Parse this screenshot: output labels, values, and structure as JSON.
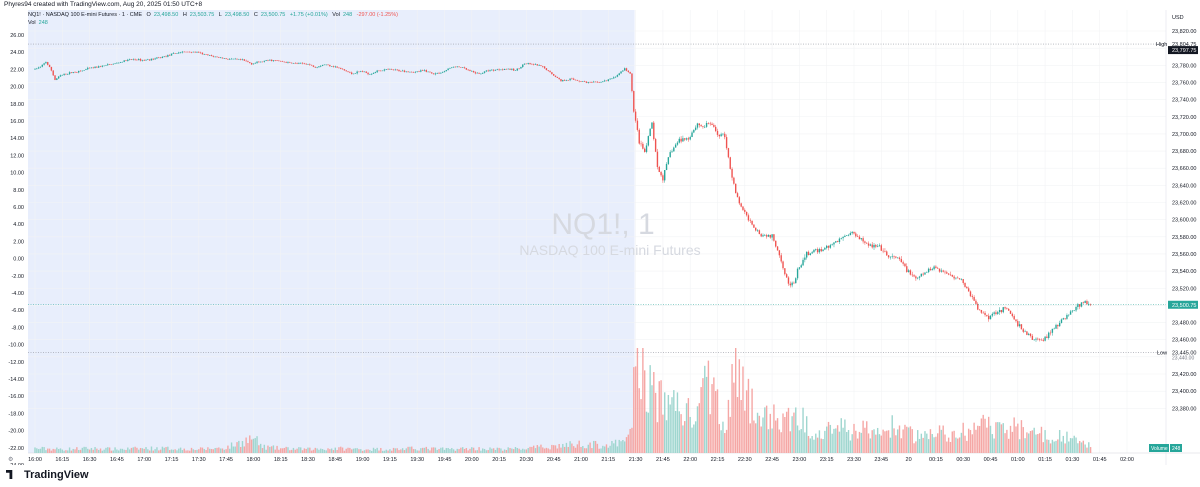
{
  "header": {
    "text": "Phyres94 created with TradingView.com, Aug 20, 2025 01:50 UTC+8"
  },
  "legend": {
    "symbol": "NQ1! · NASDAQ 100 E-mini Futures · 1 · CME",
    "o_label": "O",
    "o": "23,498.50",
    "h_label": "H",
    "h": "23,503.75",
    "l_label": "L",
    "l": "23,498.50",
    "c_label": "C",
    "c": "23,500.75",
    "chg": "+1.75 (+0.01%)",
    "vol_label": "Vol",
    "vol": "248",
    "change2": "-297.00 (-1.25%)",
    "vol_row_label": "Vol",
    "vol_row_value": "248"
  },
  "watermark": {
    "symbol": "NQ1!, 1",
    "name": "NASDAQ 100 E-mini Futures"
  },
  "footer": {
    "brand": "TradingView"
  },
  "colors": {
    "up": "#26a69a",
    "down": "#ef5350",
    "session_bg": "#e8eefc",
    "grid": "#f2f3f5",
    "axis_text": "#131722"
  },
  "chart_data": {
    "type": "candlestick",
    "currency": "USD",
    "price_axis": {
      "ticks": [
        "23,820.00",
        "23,800.00",
        "23,780.00",
        "23,760.00",
        "23,740.00",
        "23,720.00",
        "23,700.00",
        "23,680.00",
        "23,660.00",
        "23,640.00",
        "23,620.00",
        "23,600.00",
        "23,580.00",
        "23,560.00",
        "23,540.00",
        "23,520.00",
        "23,500.00",
        "23,480.00",
        "23,460.00",
        "23,440.00",
        "23,420.00",
        "23,400.00",
        "23,380.00"
      ],
      "range": [
        23370,
        23830
      ]
    },
    "left_axis": {
      "ticks": [
        "26.00",
        "24.00",
        "22.00",
        "20.00",
        "18.00",
        "16.00",
        "14.00",
        "12.00",
        "10.00",
        "8.00",
        "6.00",
        "4.00",
        "2.00",
        "0.00",
        "-2.00",
        "-4.00",
        "-6.00",
        "-8.00",
        "-10.00",
        "-12.00",
        "-14.00",
        "-16.00",
        "-18.00",
        "-20.00",
        "-22.00",
        "-24.00"
      ]
    },
    "time_axis": {
      "ticks": [
        "16:00",
        "16:15",
        "16:30",
        "16:45",
        "17:00",
        "17:15",
        "17:30",
        "17:45",
        "18:00",
        "18:15",
        "18:30",
        "18:45",
        "19:00",
        "19:15",
        "19:30",
        "19:45",
        "20:00",
        "20:15",
        "20:30",
        "20:45",
        "21:00",
        "21:15",
        "21:30",
        "21:45",
        "22:00",
        "22:15",
        "22:30",
        "22:45",
        "23:00",
        "23:15",
        "23:30",
        "23:45",
        "20",
        "00:15",
        "00:30",
        "00:45",
        "01:00",
        "01:15",
        "01:30",
        "01:45",
        "02:00"
      ]
    },
    "session_end_label": "21:30",
    "high": {
      "label": "High",
      "value": "23,804.75",
      "price": 23804.75
    },
    "high_sub": {
      "value": "23,797.75",
      "price": 23797.75
    },
    "low": {
      "label": "Low",
      "value": "23,445.00",
      "price": 23445.0
    },
    "low_sub": {
      "value": "23,440.00"
    },
    "last": {
      "value": "23,500.75",
      "price": 23500.75
    },
    "volume_label": "Volume",
    "volume_value": "248",
    "price_path": [
      [
        "16:00",
        23775
      ],
      [
        "16:04",
        23778
      ],
      [
        "16:07",
        23784
      ],
      [
        "16:10",
        23774
      ],
      [
        "16:12",
        23763
      ],
      [
        "16:15",
        23768
      ],
      [
        "16:18",
        23770
      ],
      [
        "16:22",
        23772
      ],
      [
        "16:26",
        23773
      ],
      [
        "16:30",
        23776
      ],
      [
        "16:35",
        23778
      ],
      [
        "16:40",
        23780
      ],
      [
        "16:45",
        23782
      ],
      [
        "16:50",
        23785
      ],
      [
        "16:55",
        23787
      ],
      [
        "17:00",
        23786
      ],
      [
        "17:05",
        23787
      ],
      [
        "17:10",
        23789
      ],
      [
        "17:15",
        23792
      ],
      [
        "17:20",
        23795
      ],
      [
        "17:25",
        23796
      ],
      [
        "17:30",
        23795
      ],
      [
        "17:35",
        23792
      ],
      [
        "17:40",
        23790
      ],
      [
        "17:45",
        23788
      ],
      [
        "17:50",
        23787
      ],
      [
        "17:55",
        23786
      ],
      [
        "18:00",
        23782
      ],
      [
        "18:05",
        23784
      ],
      [
        "18:10",
        23786
      ],
      [
        "18:15",
        23785
      ],
      [
        "18:20",
        23783
      ],
      [
        "18:25",
        23782
      ],
      [
        "18:30",
        23782
      ],
      [
        "18:35",
        23778
      ],
      [
        "18:40",
        23781
      ],
      [
        "18:45",
        23779
      ],
      [
        "18:50",
        23775
      ],
      [
        "18:55",
        23770
      ],
      [
        "19:00",
        23773
      ],
      [
        "19:05",
        23770
      ],
      [
        "19:10",
        23774
      ],
      [
        "19:15",
        23775
      ],
      [
        "19:20",
        23774
      ],
      [
        "19:25",
        23773
      ],
      [
        "19:30",
        23772
      ],
      [
        "19:35",
        23774
      ],
      [
        "19:40",
        23770
      ],
      [
        "19:45",
        23772
      ],
      [
        "19:50",
        23778
      ],
      [
        "19:55",
        23778
      ],
      [
        "20:00",
        23773
      ],
      [
        "20:05",
        23770
      ],
      [
        "20:10",
        23774
      ],
      [
        "20:15",
        23775
      ],
      [
        "20:20",
        23776
      ],
      [
        "20:25",
        23774
      ],
      [
        "20:30",
        23782
      ],
      [
        "20:35",
        23781
      ],
      [
        "20:40",
        23778
      ],
      [
        "20:45",
        23770
      ],
      [
        "20:50",
        23762
      ],
      [
        "20:55",
        23764
      ],
      [
        "21:00",
        23762
      ],
      [
        "21:05",
        23760
      ],
      [
        "21:10",
        23760
      ],
      [
        "21:15",
        23762
      ],
      [
        "21:20",
        23767
      ],
      [
        "21:25",
        23776
      ],
      [
        "21:28",
        23770
      ],
      [
        "21:30",
        23728
      ],
      [
        "21:33",
        23690
      ],
      [
        "21:36",
        23678
      ],
      [
        "21:40",
        23713
      ],
      [
        "21:43",
        23660
      ],
      [
        "21:46",
        23648
      ],
      [
        "21:50",
        23678
      ],
      [
        "21:55",
        23693
      ],
      [
        "22:00",
        23695
      ],
      [
        "22:05",
        23712
      ],
      [
        "22:08",
        23708
      ],
      [
        "22:12",
        23713
      ],
      [
        "22:16",
        23700
      ],
      [
        "22:20",
        23698
      ],
      [
        "22:23",
        23660
      ],
      [
        "22:26",
        23630
      ],
      [
        "22:30",
        23610
      ],
      [
        "22:35",
        23595
      ],
      [
        "22:40",
        23582
      ],
      [
        "22:43",
        23582
      ],
      [
        "22:46",
        23580
      ],
      [
        "22:50",
        23560
      ],
      [
        "22:55",
        23525
      ],
      [
        "22:58",
        23525
      ],
      [
        "23:00",
        23540
      ],
      [
        "23:05",
        23560
      ],
      [
        "23:10",
        23563
      ],
      [
        "23:15",
        23567
      ],
      [
        "23:20",
        23572
      ],
      [
        "23:25",
        23580
      ],
      [
        "23:30",
        23585
      ],
      [
        "23:35",
        23578
      ],
      [
        "23:40",
        23570
      ],
      [
        "23:45",
        23567
      ],
      [
        "23:50",
        23556
      ],
      [
        "23:55",
        23555
      ],
      [
        "00:00",
        23542
      ],
      [
        "00:05",
        23530
      ],
      [
        "00:10",
        23538
      ],
      [
        "00:15",
        23545
      ],
      [
        "00:20",
        23539
      ],
      [
        "00:25",
        23535
      ],
      [
        "00:30",
        23530
      ],
      [
        "00:35",
        23512
      ],
      [
        "00:40",
        23493
      ],
      [
        "00:45",
        23487
      ],
      [
        "00:50",
        23494
      ],
      [
        "00:55",
        23496
      ],
      [
        "01:00",
        23480
      ],
      [
        "01:05",
        23468
      ],
      [
        "01:10",
        23460
      ],
      [
        "01:15",
        23460
      ],
      [
        "01:20",
        23472
      ],
      [
        "01:25",
        23482
      ],
      [
        "01:30",
        23492
      ],
      [
        "01:35",
        23500
      ],
      [
        "01:38",
        23506
      ],
      [
        "01:40",
        23500
      ]
    ],
    "volume_path": [
      [
        "16:00",
        6
      ],
      [
        "16:15",
        5
      ],
      [
        "16:30",
        6
      ],
      [
        "16:45",
        5
      ],
      [
        "17:00",
        6
      ],
      [
        "17:15",
        6
      ],
      [
        "17:30",
        5
      ],
      [
        "17:45",
        7
      ],
      [
        "18:00",
        20
      ],
      [
        "18:05",
        8
      ],
      [
        "18:15",
        6
      ],
      [
        "18:30",
        5
      ],
      [
        "18:45",
        6
      ],
      [
        "19:00",
        5
      ],
      [
        "19:15",
        5
      ],
      [
        "19:30",
        6
      ],
      [
        "19:45",
        5
      ],
      [
        "20:00",
        6
      ],
      [
        "20:15",
        5
      ],
      [
        "20:30",
        6
      ],
      [
        "20:45",
        9
      ],
      [
        "21:00",
        12
      ],
      [
        "21:15",
        10
      ],
      [
        "21:25",
        15
      ],
      [
        "21:28",
        50
      ],
      [
        "21:30",
        130
      ],
      [
        "21:35",
        95
      ],
      [
        "21:40",
        80
      ],
      [
        "21:45",
        62
      ],
      [
        "21:50",
        70
      ],
      [
        "21:55",
        60
      ],
      [
        "22:00",
        48
      ],
      [
        "22:05",
        52
      ],
      [
        "22:10",
        100
      ],
      [
        "22:15",
        60
      ],
      [
        "22:20",
        45
      ],
      [
        "22:25",
        112
      ],
      [
        "22:30",
        70
      ],
      [
        "22:35",
        62
      ],
      [
        "22:40",
        42
      ],
      [
        "22:45",
        52
      ],
      [
        "22:50",
        38
      ],
      [
        "22:55",
        44
      ],
      [
        "23:00",
        48
      ],
      [
        "23:05",
        35
      ],
      [
        "23:10",
        30
      ],
      [
        "23:15",
        38
      ],
      [
        "23:20",
        35
      ],
      [
        "23:25",
        30
      ],
      [
        "23:30",
        28
      ],
      [
        "23:35",
        34
      ],
      [
        "23:40",
        26
      ],
      [
        "23:45",
        24
      ],
      [
        "23:50",
        36
      ],
      [
        "23:55",
        30
      ],
      [
        "00:00",
        25
      ],
      [
        "00:05",
        22
      ],
      [
        "00:10",
        26
      ],
      [
        "00:15",
        24
      ],
      [
        "00:20",
        28
      ],
      [
        "00:25",
        22
      ],
      [
        "00:30",
        27
      ],
      [
        "00:35",
        30
      ],
      [
        "00:40",
        36
      ],
      [
        "00:45",
        32
      ],
      [
        "00:50",
        28
      ],
      [
        "00:55",
        33
      ],
      [
        "01:00",
        35
      ],
      [
        "01:05",
        30
      ],
      [
        "01:10",
        28
      ],
      [
        "01:15",
        22
      ],
      [
        "01:20",
        24
      ],
      [
        "01:25",
        20
      ],
      [
        "01:30",
        18
      ],
      [
        "01:35",
        14
      ],
      [
        "01:40",
        10
      ]
    ]
  }
}
